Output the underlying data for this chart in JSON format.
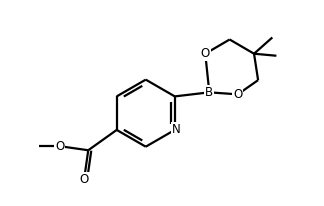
{
  "bg_color": "#ffffff",
  "line_color": "#000000",
  "line_width": 1.6,
  "font_size": 8.5,
  "figsize": [
    3.24,
    2.06
  ],
  "dpi": 100,
  "xlim": [
    -0.28,
    1.1
  ],
  "ylim": [
    0.05,
    1.05
  ]
}
